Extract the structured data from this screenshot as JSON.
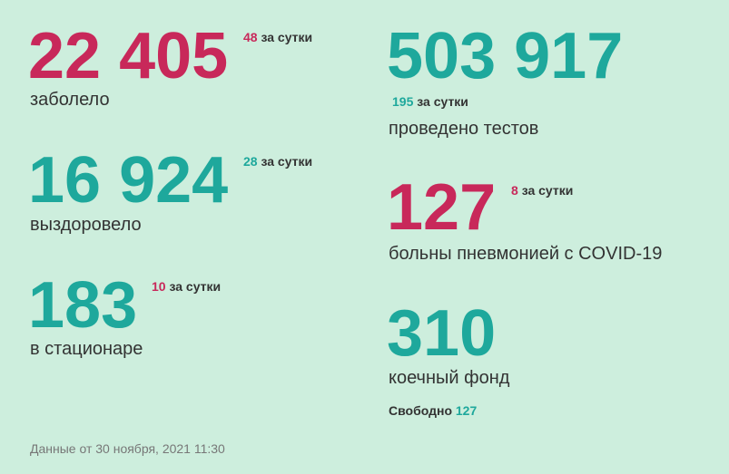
{
  "stats": [
    {
      "value": "22 405",
      "delta": "48",
      "suffix": "за сутки",
      "label": "заболело",
      "color": "#c8285a",
      "delta_color": "#c8285a"
    },
    {
      "value": "16 924",
      "delta": "28",
      "suffix": "за сутки",
      "label": "выздоровело",
      "color": "#1ea89c",
      "delta_color": "#1ea89c"
    },
    {
      "value": "183",
      "delta": "10",
      "suffix": "за сутки",
      "label": "в стационаре",
      "color": "#1ea89c",
      "delta_color": "#c8285a"
    },
    {
      "value": "503 917",
      "delta": "195",
      "suffix": "за сутки",
      "label": "проведено тестов",
      "color": "#1ea89c",
      "delta_color": "#1ea89c"
    },
    {
      "value": "127",
      "delta": "8",
      "suffix": "за сутки",
      "label": "больны пневмонией с COVID-19",
      "color": "#c8285a",
      "delta_color": "#c8285a"
    },
    {
      "value": "310",
      "label": "коечный фонд",
      "color": "#1ea89c",
      "free_label": "Свободно",
      "free_value": "127",
      "free_color": "#1ea89c"
    }
  ],
  "footer": "Данные от 30 ноября, 2021 11:30"
}
